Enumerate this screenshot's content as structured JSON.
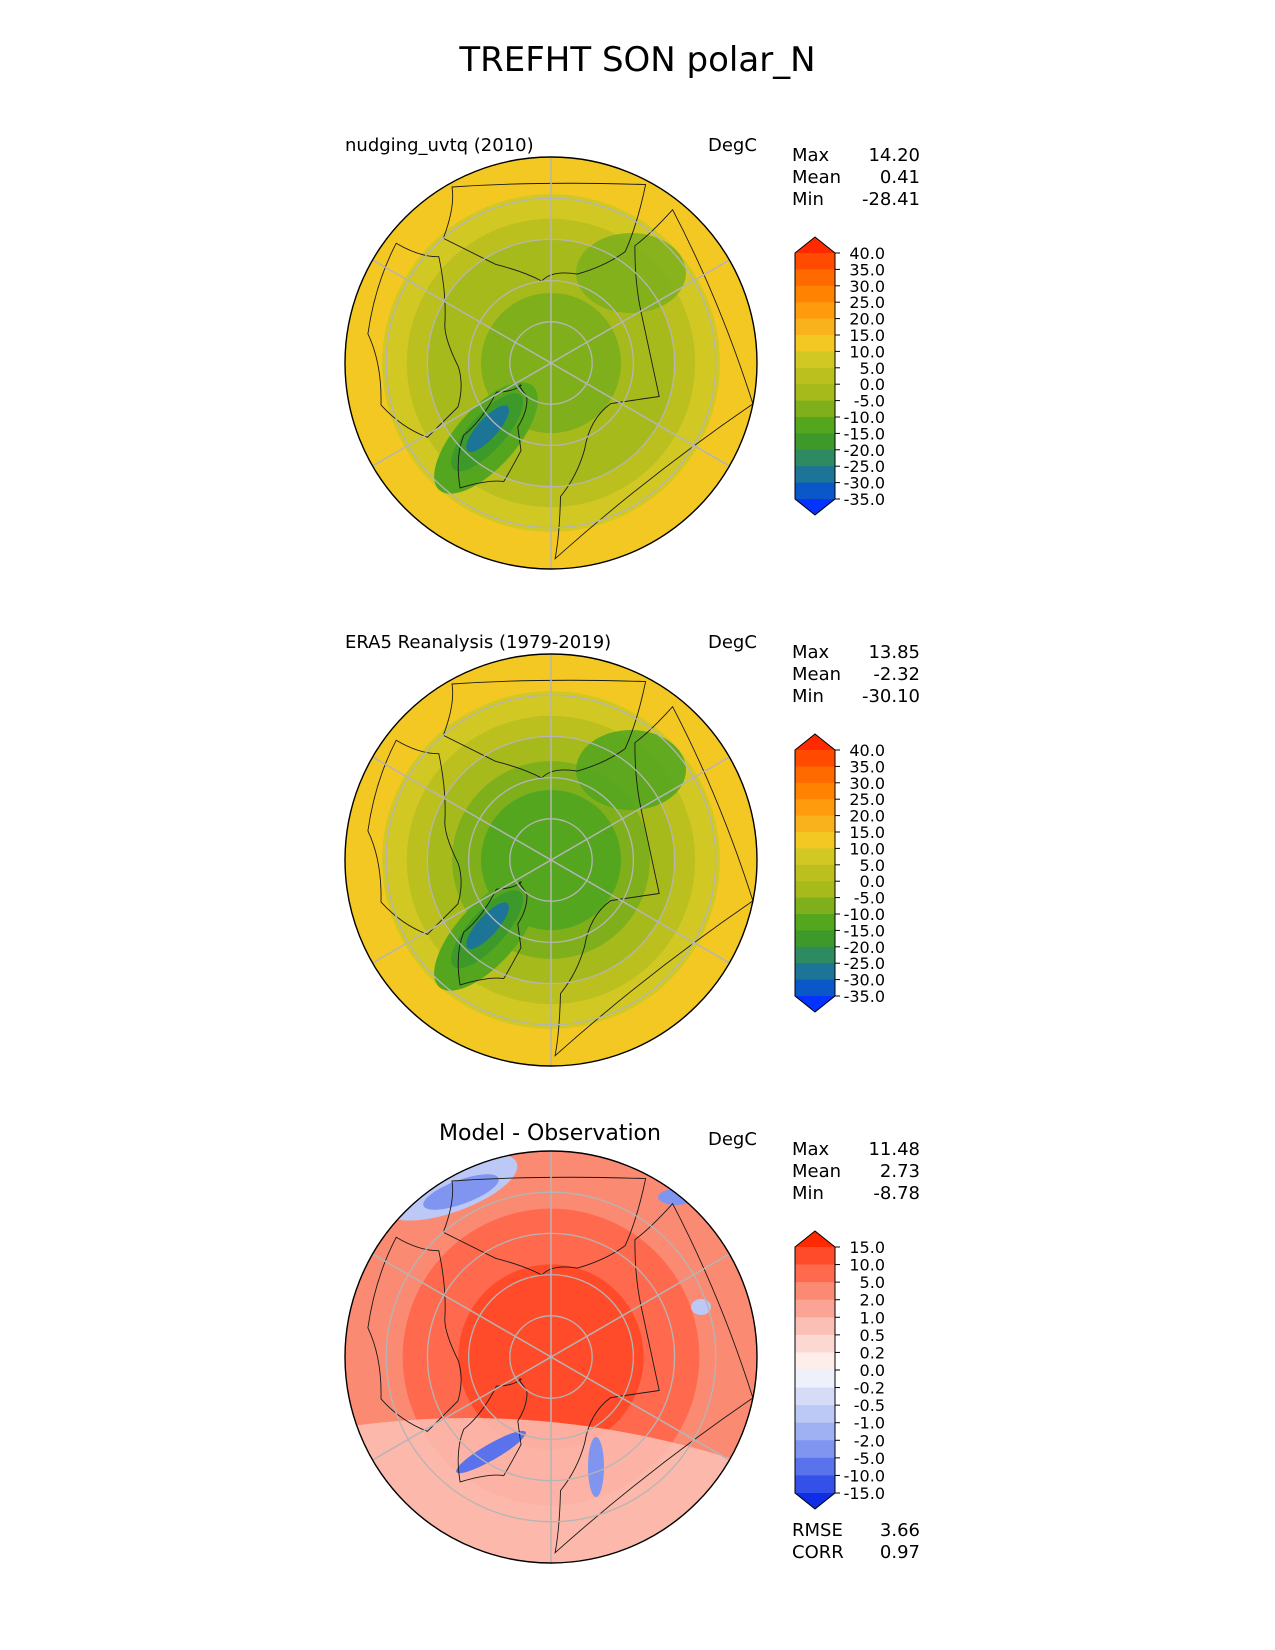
{
  "title": "TREFHT SON polar_N",
  "panels": [
    {
      "title": "nudging_uvtq (2010)",
      "units": "DegC",
      "stats": [
        {
          "label": "Max",
          "value": "14.20"
        },
        {
          "label": "Mean",
          "value": "0.41"
        },
        {
          "label": "Min",
          "value": "-28.41"
        }
      ],
      "colorbar": {
        "levels": [
          "40.0",
          "35.0",
          "30.0",
          "25.0",
          "20.0",
          "15.0",
          "10.0",
          "5.0",
          "0.0",
          "-5.0",
          "-10.0",
          "-15.0",
          "-20.0",
          "-25.0",
          "-30.0",
          "-35.0"
        ],
        "colors": [
          "#ff2a00",
          "#ff4a00",
          "#ff6a00",
          "#ff8200",
          "#ff9b0c",
          "#f9b21c",
          "#f4c823",
          "#d2c823",
          "#bbc01f",
          "#a6ba1c",
          "#7fb01c",
          "#55a61f",
          "#3d9a2a",
          "#2e8a60",
          "#1c7596",
          "#0a58c8",
          "#0433ff"
        ]
      },
      "scheme": "abs",
      "hue": 0.0
    },
    {
      "title": "ERA5 Reanalysis (1979-2019)",
      "units": "DegC",
      "stats": [
        {
          "label": "Max",
          "value": "13.85"
        },
        {
          "label": "Mean",
          "value": "-2.32"
        },
        {
          "label": "Min",
          "value": "-30.10"
        }
      ],
      "colorbar": {
        "levels": [
          "40.0",
          "35.0",
          "30.0",
          "25.0",
          "20.0",
          "15.0",
          "10.0",
          "5.0",
          "0.0",
          "-5.0",
          "-10.0",
          "-15.0",
          "-20.0",
          "-25.0",
          "-30.0",
          "-35.0"
        ],
        "colors": [
          "#ff2a00",
          "#ff4a00",
          "#ff6a00",
          "#ff8200",
          "#ff9b0c",
          "#f9b21c",
          "#f4c823",
          "#d2c823",
          "#bbc01f",
          "#a6ba1c",
          "#7fb01c",
          "#55a61f",
          "#3d9a2a",
          "#2e8a60",
          "#1c7596",
          "#0a58c8",
          "#0433ff"
        ]
      },
      "scheme": "abs",
      "hue": 1.0
    },
    {
      "title": "Model - Observation",
      "units": "DegC",
      "stats": [
        {
          "label": "Max",
          "value": "11.48"
        },
        {
          "label": "Mean",
          "value": "2.73"
        },
        {
          "label": "Min",
          "value": "-8.78"
        }
      ],
      "colorbar": {
        "levels": [
          "15.0",
          "10.0",
          "5.0",
          "2.0",
          "1.0",
          "0.5",
          "0.2",
          "0.0",
          "-0.2",
          "-0.5",
          "-1.0",
          "-2.0",
          "-5.0",
          "-10.0",
          "-15.0"
        ],
        "colors": [
          "#ff2a00",
          "#ff4b2a",
          "#ff6a4e",
          "#fb8a72",
          "#fba496",
          "#fbbfb5",
          "#fbd8d2",
          "#fdeeea",
          "#eef0fb",
          "#d6dcf8",
          "#bcc8f6",
          "#9fb0f3",
          "#7f95f0",
          "#5a73ec",
          "#3350e8",
          "#0d2ee6"
        ]
      },
      "scheme": "diff",
      "hue": 0.0
    }
  ],
  "bottom_stats": [
    {
      "label": "RMSE",
      "value": "3.66"
    },
    {
      "label": "CORR",
      "value": "0.97"
    }
  ]
}
